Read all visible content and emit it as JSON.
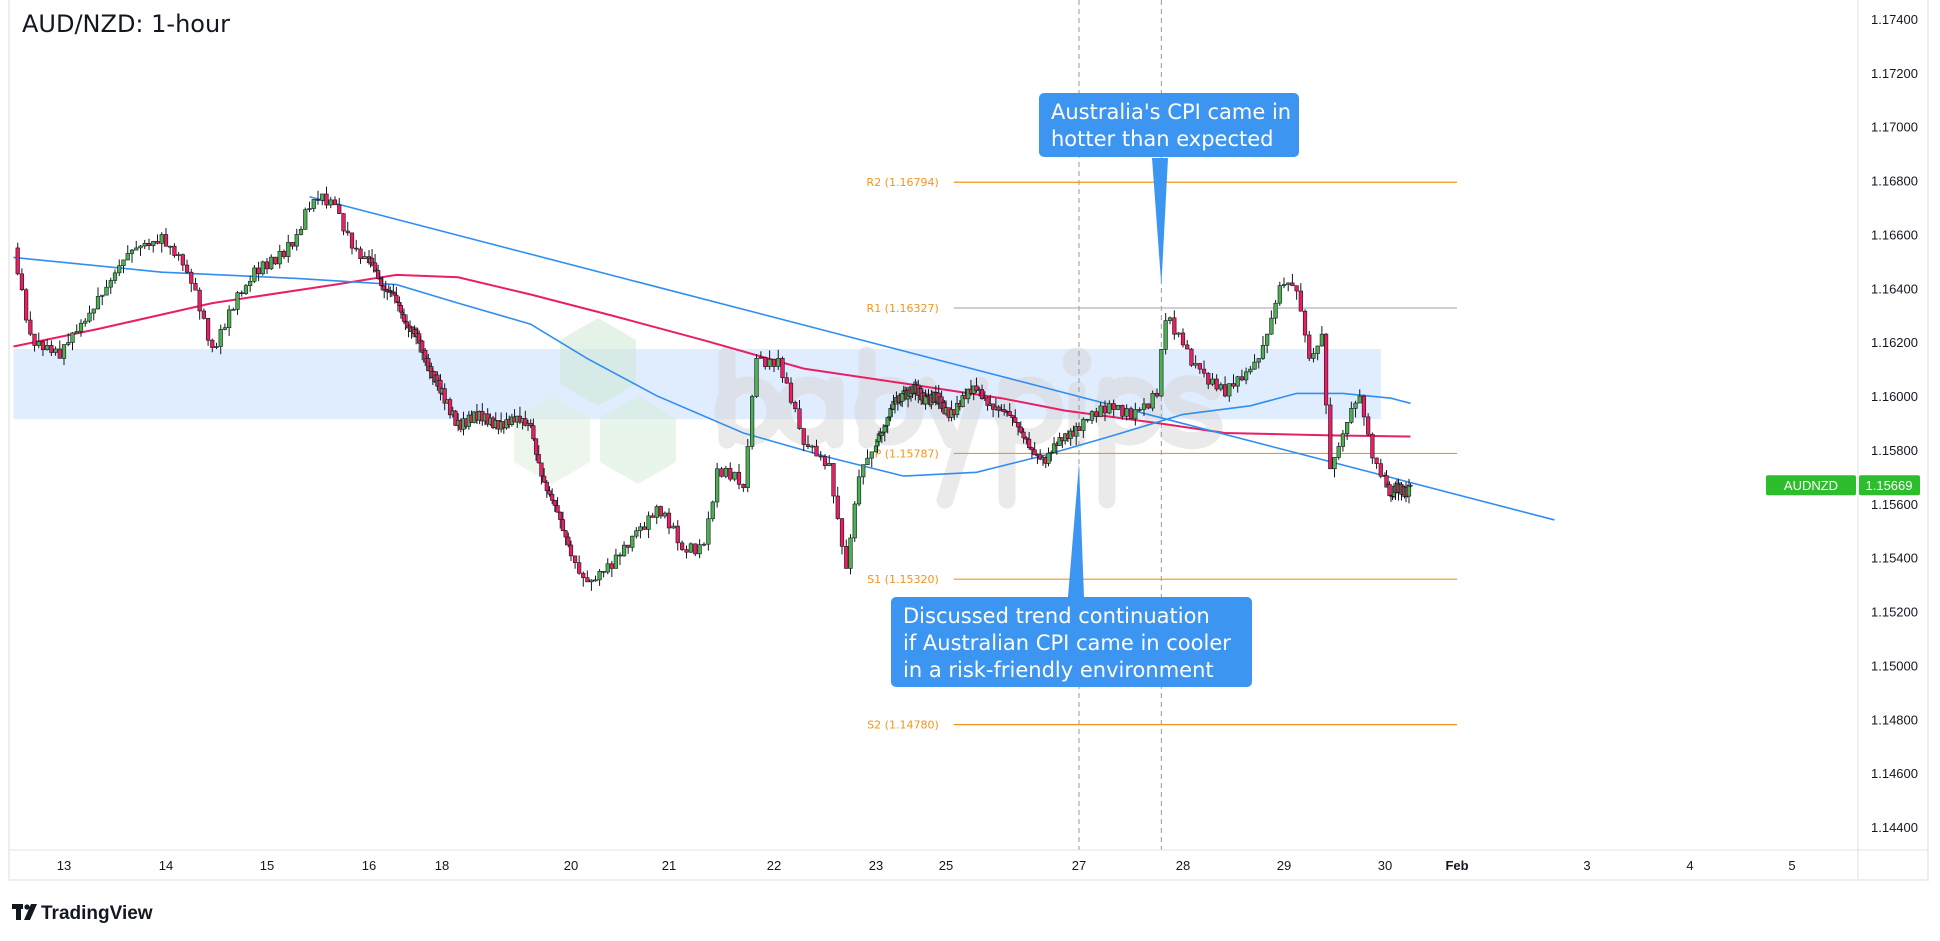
{
  "header": {
    "title": "AUD/NZD: 1-hour"
  },
  "branding": {
    "tradingview": "TradingView",
    "watermark": "babypips"
  },
  "colors": {
    "up": "#4caf50",
    "down": "#e91e63",
    "trendline": "#2f8ff0",
    "ma_fast": "#2f8ff0",
    "ma_slow": "#e91e63",
    "pivot": "#f7931a",
    "zone": "#dbeafe",
    "callout": "#3d95f2",
    "last_price": "#2dbe2d"
  },
  "chart_data": {
    "type": "candlestick",
    "title": "AUD/NZD: 1-hour",
    "symbol": "AUDNZD",
    "last_price": "1.15669",
    "ylim": [
      1.1435,
      1.175
    ],
    "grid": false,
    "y_ticks": [
      "1.17400",
      "1.17200",
      "1.17000",
      "1.16800",
      "1.16600",
      "1.16400",
      "1.16200",
      "1.16000",
      "1.15800",
      "1.15600",
      "1.15400",
      "1.15200",
      "1.15000",
      "1.14800",
      "1.14600",
      "1.14400"
    ],
    "x_ticks": [
      {
        "label": "13",
        "t": "Jan 13 00:00"
      },
      {
        "label": "14",
        "t": "Jan 14 00:00"
      },
      {
        "label": "15",
        "t": "Jan 15 00:00"
      },
      {
        "label": "16",
        "t": "Jan 16 00:00"
      },
      {
        "label": "18",
        "t": "Jan 18 00:00"
      },
      {
        "label": "20",
        "t": "Jan 20 00:00"
      },
      {
        "label": "21",
        "t": "Jan 21 00:00"
      },
      {
        "label": "22",
        "t": "Jan 22 00:00"
      },
      {
        "label": "23",
        "t": "Jan 23 00:00"
      },
      {
        "label": "25",
        "t": "Jan 25 00:00"
      },
      {
        "label": "27",
        "t": "Jan 27 00:00"
      },
      {
        "label": "28",
        "t": "Jan 28 00:00"
      },
      {
        "label": "29",
        "t": "Jan 29 00:00"
      },
      {
        "label": "30",
        "t": "Jan 30 00:00"
      },
      {
        "label": "Feb",
        "t": "Feb 1 00:00",
        "bold": true
      },
      {
        "label": "3",
        "t": "Feb 3 00:00"
      },
      {
        "label": "4",
        "t": "Feb 4 00:00"
      },
      {
        "label": "5",
        "t": "Feb 5 00:00"
      }
    ],
    "price_path": [
      [
        "Jan 12 12:00",
        1.1655
      ],
      [
        "Jan 12 16:00",
        1.1623
      ],
      [
        "Jan 12 23:00",
        1.1614
      ],
      [
        "Jan 13 08:00",
        1.1637
      ],
      [
        "Jan 13 17:00",
        1.1655
      ],
      [
        "Jan 13 23:00",
        1.166
      ],
      [
        "Jan 14 05:00",
        1.1646
      ],
      [
        "Jan 14 11:00",
        1.1618
      ],
      [
        "Jan 14 15:00",
        1.1632
      ],
      [
        "Jan 14 19:00",
        1.1641
      ],
      [
        "Jan 15 07:00",
        1.166
      ],
      [
        "Jan 15 11:00",
        1.1673
      ],
      [
        "Jan 15 16:00",
        1.1671
      ],
      [
        "Jan 15 22:00",
        1.1651
      ],
      [
        "Jan 16 18:00",
        1.1635
      ],
      [
        "Jan 17 14:00",
        1.1614
      ],
      [
        "Jan 18 06:00",
        1.1591
      ],
      [
        "Jan 18 20:00",
        1.1591
      ],
      [
        "Jan 19 09:00",
        1.1589
      ],
      [
        "Jan 19 14:00",
        1.1568
      ],
      [
        "Jan 19 21:00",
        1.155
      ],
      [
        "Jan 20 04:00",
        1.1531
      ],
      [
        "Jan 20 10:00",
        1.1536
      ],
      [
        "Jan 20 16:00",
        1.155
      ],
      [
        "Jan 20 21:00",
        1.1559
      ],
      [
        "Jan 21 03:00",
        1.1543
      ],
      [
        "Jan 21 08:00",
        1.1545
      ],
      [
        "Jan 21 11:00",
        1.1573
      ],
      [
        "Jan 21 17:00",
        1.1566
      ],
      [
        "Jan 21 20:00",
        1.1614
      ],
      [
        "Jan 22 01:00",
        1.1614
      ],
      [
        "Jan 22 07:00",
        1.1582
      ],
      [
        "Jan 22 13:00",
        1.1575
      ],
      [
        "Jan 22 17:00",
        1.1536
      ],
      [
        "Jan 22 20:00",
        1.157
      ],
      [
        "Jan 23 02:00",
        1.1586
      ],
      [
        "Jan 23 19:00",
        1.1602
      ],
      [
        "Jan 24 11:00",
        1.16
      ],
      [
        "Jan 25 02:00",
        1.1595
      ],
      [
        "Jan 25 11:00",
        1.1602
      ],
      [
        "Jan 25 20:00",
        1.1595
      ],
      [
        "Jan 26 05:00",
        1.1584
      ],
      [
        "Jan 26 12:00",
        1.1575
      ],
      [
        "Jan 26 19:00",
        1.1586
      ],
      [
        "Jan 27 02:00",
        1.1591
      ],
      [
        "Jan 27 08:00",
        1.1595
      ],
      [
        "Jan 27 14:00",
        1.1595
      ],
      [
        "Jan 27 18:00",
        1.16
      ],
      [
        "Jan 27 20:00",
        1.1628
      ],
      [
        "Jan 28 00:00",
        1.1619
      ],
      [
        "Jan 28 04:00",
        1.161
      ],
      [
        "Jan 28 10:00",
        1.16
      ],
      [
        "Jan 28 16:00",
        1.161
      ],
      [
        "Jan 28 20:00",
        1.1623
      ],
      [
        "Jan 28 23:00",
        1.1641
      ],
      [
        "Jan 29 03:00",
        1.1639
      ],
      [
        "Jan 29 06:00",
        1.1614
      ],
      [
        "Jan 29 09:00",
        1.1623
      ],
      [
        "Jan 29 11:00",
        1.1573
      ],
      [
        "Jan 29 14:00",
        1.1586
      ],
      [
        "Jan 29 18:00",
        1.16
      ],
      [
        "Jan 29 21:00",
        1.1577
      ],
      [
        "Jan 30 04:00",
        1.1563
      ],
      [
        "Jan 30 17:00",
        1.15669
      ]
    ],
    "ma_fast": [
      [
        "Jan 12 12:00",
        1.16515
      ],
      [
        "Jan 13 23:00",
        1.1646
      ],
      [
        "Jan 15 07:00",
        1.16437
      ],
      [
        "Jan 16 18:00",
        1.16414
      ],
      [
        "Jan 18 06:00",
        1.16345
      ],
      [
        "Jan 19 09:00",
        1.16267
      ],
      [
        "Jan 20 04:00",
        1.16139
      ],
      [
        "Jan 20 21:00",
        1.16001
      ],
      [
        "Jan 21 17:00",
        1.15863
      ],
      [
        "Jan 22 13:00",
        1.15772
      ],
      [
        "Jan 23 19:00",
        1.15703
      ],
      [
        "Jan 25 11:00",
        1.15717
      ],
      [
        "Jan 26 12:00",
        1.15781
      ],
      [
        "Jan 27 08:00",
        1.15854
      ],
      [
        "Jan 28 00:00",
        1.15932
      ],
      [
        "Jan 28 16:00",
        1.15964
      ],
      [
        "Jan 29 03:00",
        1.1601
      ],
      [
        "Jan 29 14:00",
        1.1601
      ],
      [
        "Jan 30 04:00",
        1.15992
      ],
      [
        "Jan 30 17:00",
        1.15973
      ]
    ],
    "ma_slow": [
      [
        "Jan 12 12:00",
        1.16184
      ],
      [
        "Jan 13 08:00",
        1.16249
      ],
      [
        "Jan 14 11:00",
        1.16345
      ],
      [
        "Jan 15 16:00",
        1.16414
      ],
      [
        "Jan 16 18:00",
        1.1645
      ],
      [
        "Jan 18 06:00",
        1.16441
      ],
      [
        "Jan 19 09:00",
        1.16377
      ],
      [
        "Jan 20 10:00",
        1.16299
      ],
      [
        "Jan 21 08:00",
        1.16207
      ],
      [
        "Jan 22 07:00",
        1.16102
      ],
      [
        "Jan 23 19:00",
        1.16047
      ],
      [
        "Jan 25 20:00",
        1.15992
      ],
      [
        "Jan 26 19:00",
        1.15946
      ],
      [
        "Jan 27 18:00",
        1.159
      ],
      [
        "Jan 28 10:00",
        1.15863
      ],
      [
        "Jan 29 11:00",
        1.15854
      ],
      [
        "Jan 30 17:00",
        1.1585
      ]
    ],
    "trendline": {
      "start": [
        "Jan 15 10:00",
        1.1674
      ],
      "end": [
        "Feb 2 12:00",
        1.1554
      ]
    },
    "zone": {
      "start": "Jan 12 12:00",
      "end": "Jan 29 23:00",
      "top": 1.16175,
      "bottom": 1.15914
    },
    "event_lines": [
      "Jan 27 00:00",
      "Jan 27 19:00"
    ],
    "pivots": {
      "start": "Jan 25 01:00",
      "end": "Feb 1 00:00",
      "levels": [
        {
          "name": "R2",
          "value": 1.16794,
          "label": "R2 (1.16794)"
        },
        {
          "name": "R1",
          "value": 1.16327,
          "label": "R1 (1.16327)"
        },
        {
          "name": "P",
          "value": 1.15787,
          "label": "P (1.15787)"
        },
        {
          "name": "S1",
          "value": 1.1532,
          "label": "S1 (1.15320)"
        },
        {
          "name": "S2",
          "value": 1.1478,
          "label": "S2 (1.14780)"
        }
      ]
    },
    "annotations": [
      {
        "lines": [
          "Australia's CPI came in",
          "hotter than expected"
        ],
        "points_to": [
          "Jan 27 19:00",
          1.1641
        ]
      },
      {
        "lines": [
          "Discussed trend continuation",
          "if Australian CPI came in cooler",
          "in a risk-friendly environment"
        ],
        "points_to": [
          "Jan 27 00:00",
          1.1575
        ]
      }
    ]
  }
}
